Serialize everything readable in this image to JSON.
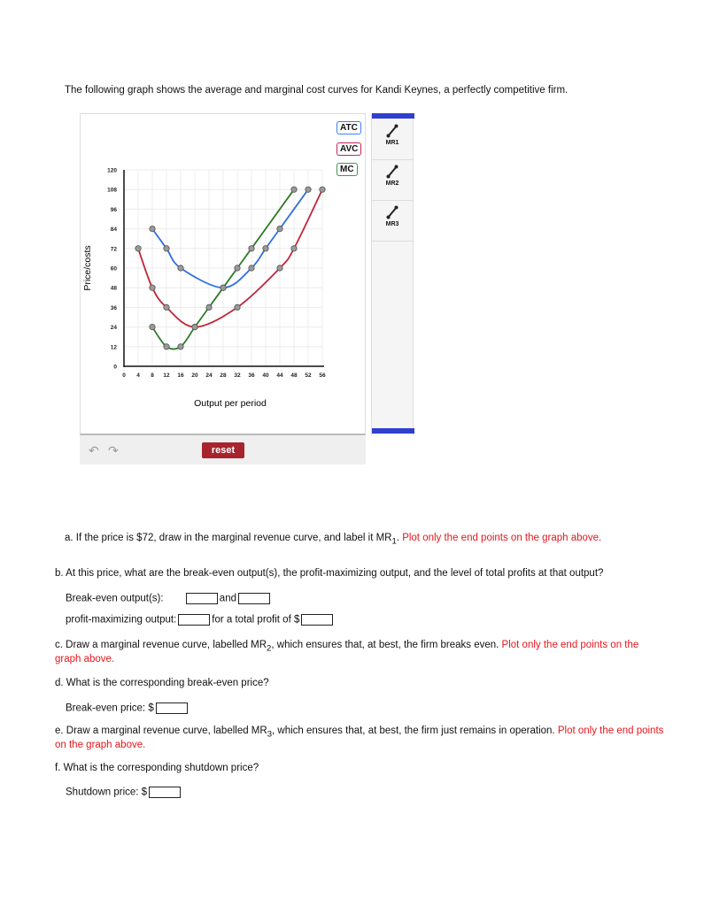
{
  "intro": "The following graph shows the average and marginal cost curves for Kandi Keynes, a perfectly competitive firm.",
  "chart_data": {
    "type": "line",
    "xlabel": "Output per period",
    "ylabel": "Price/costs",
    "xlim": [
      0,
      56
    ],
    "ylim": [
      0,
      120
    ],
    "xticks": [
      0,
      4,
      8,
      12,
      16,
      20,
      24,
      28,
      32,
      36,
      40,
      44,
      48,
      52,
      56
    ],
    "yticks": [
      0,
      12,
      24,
      36,
      48,
      60,
      72,
      84,
      96,
      108,
      120
    ],
    "grid": true,
    "series": [
      {
        "name": "ATC",
        "color": "#2f6fdf",
        "points": [
          [
            8,
            84
          ],
          [
            12,
            72
          ],
          [
            16,
            60
          ],
          [
            28,
            48
          ],
          [
            36,
            60
          ],
          [
            40,
            72
          ],
          [
            44,
            84
          ],
          [
            52,
            108
          ]
        ]
      },
      {
        "name": "AVC",
        "color": "#c0273a",
        "points": [
          [
            4,
            72
          ],
          [
            8,
            48
          ],
          [
            12,
            36
          ],
          [
            20,
            24
          ],
          [
            32,
            36
          ],
          [
            44,
            60
          ],
          [
            48,
            72
          ],
          [
            56,
            108
          ]
        ]
      },
      {
        "name": "MC",
        "color": "#2f7a2a",
        "points": [
          [
            8,
            24
          ],
          [
            12,
            12
          ],
          [
            16,
            12
          ],
          [
            20,
            24
          ],
          [
            24,
            36
          ],
          [
            28,
            48
          ],
          [
            32,
            60
          ],
          [
            36,
            72
          ],
          [
            48,
            108
          ]
        ]
      }
    ]
  },
  "legend": {
    "atc": "ATC",
    "avc": "AVC",
    "mc": "MC",
    "atc_color": "#3b82f6",
    "avc_color": "#c0275a",
    "mc_color": "#3f9a4a"
  },
  "tools": [
    {
      "label": "MR1",
      "icon": "line-tool-icon"
    },
    {
      "label": "MR2",
      "icon": "line-tool-icon"
    },
    {
      "label": "MR3",
      "icon": "line-tool-icon"
    }
  ],
  "controls": {
    "reset": "reset",
    "undo": "↶",
    "redo": "↷"
  },
  "questions": {
    "a_text": "a. If the price is $72, draw in the marginal revenue curve, and label it MR",
    "a_sub": "1",
    "a_red": "Plot only the end points on the graph above.",
    "b_text": "b. At this price, what are the break-even output(s), the profit-maximizing output, and the level of total profits at that output?",
    "b_breakeven": "Break-even output(s):",
    "b_and": "and",
    "b_profitmax": "profit-maximizing output:",
    "b_profit": "for a total profit of $",
    "c_text1": "c. Draw a marginal revenue curve, labelled MR",
    "c_sub": "2",
    "c_text2": ", which ensures that, at best, the firm breaks even.",
    "c_red1": "Plot only the end points on the",
    "c_red2": "graph above.",
    "d_text": "d. What is the corresponding break-even price?",
    "d_label": "Break-even price: $",
    "e_text1": "e. Draw a marginal revenue curve, labelled MR",
    "e_sub": "3",
    "e_text2": ", which ensures that, at best, the firm just remains in operation.",
    "e_red1": "Plot only the end points",
    "e_red2": "on the graph above.",
    "f_text": "f. What is the corresponding shutdown price?",
    "f_label": "Shutdown price: $"
  }
}
